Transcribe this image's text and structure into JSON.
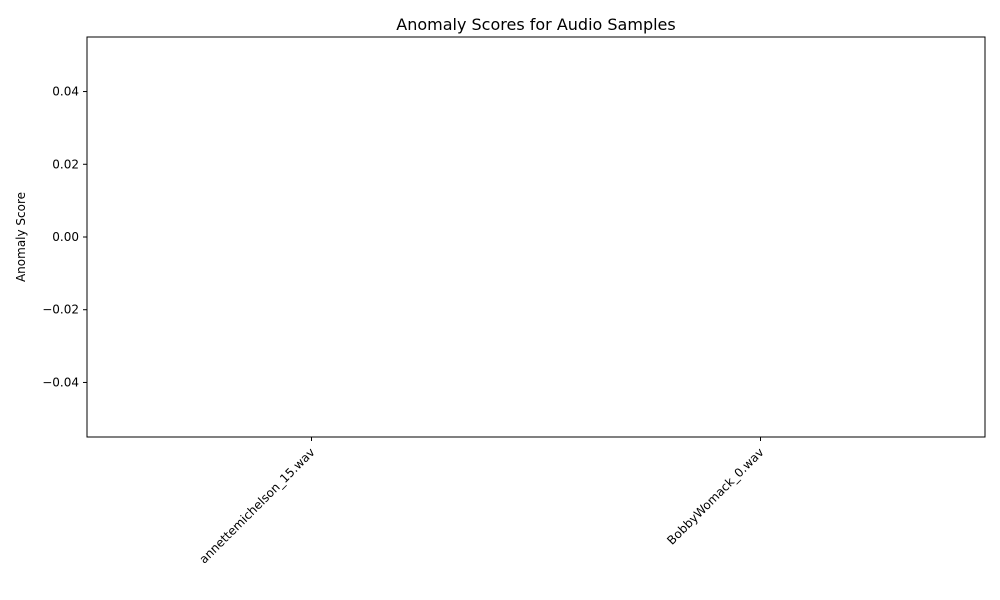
{
  "chart_data": {
    "type": "bar",
    "title": "Anomaly Scores for Audio Samples",
    "xlabel": "",
    "ylabel": "Anomaly Score",
    "categories": [
      "annettemichelson_15.wav",
      "BobbyWomack_0.wav"
    ],
    "values": [
      0,
      0
    ],
    "ylim": [
      -0.055,
      0.055
    ],
    "yticks": [
      0.04,
      0.02,
      0.0,
      -0.02,
      -0.04
    ],
    "ytick_labels": [
      "0.04",
      "0.02",
      "0.00",
      "−0.02",
      "−0.04"
    ],
    "grid": false,
    "bar_color": "#1f77b4"
  }
}
